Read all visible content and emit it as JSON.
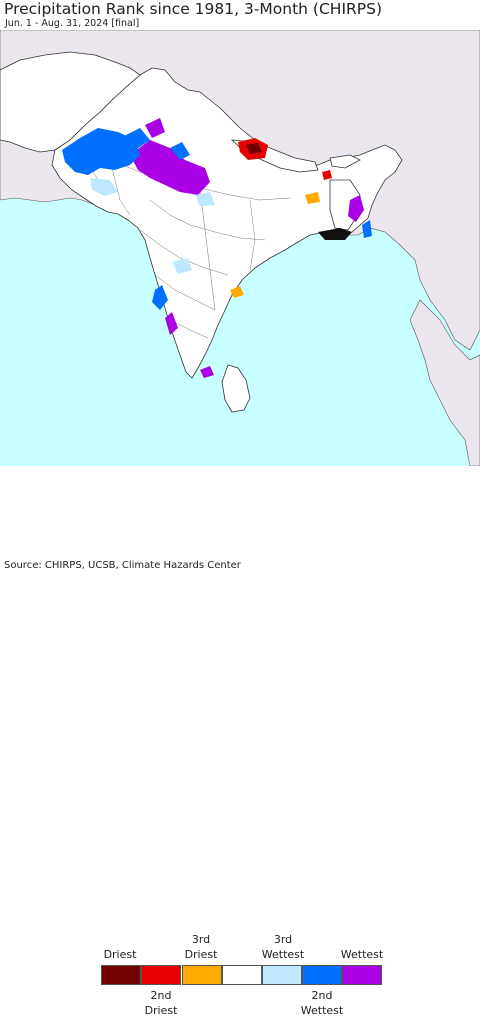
{
  "header": {
    "title": "Precipitation Rank since 1981, 3-Month (CHIRPS)",
    "subtitle": "Jun. 1 - Aug. 31, 2024 [final]"
  },
  "map": {
    "colors": {
      "ocean": "#c8ffff",
      "land_other": "#ece6ee",
      "land_region": "#ffffff",
      "border": "#444444"
    }
  },
  "legend": {
    "items": [
      {
        "label_top": "Driest",
        "label_bottom": "",
        "color": "#730000"
      },
      {
        "label_top": "",
        "label_bottom": "2nd\nDriest",
        "color": "#e60000"
      },
      {
        "label_top": "3rd\nDriest",
        "label_bottom": "",
        "color": "#ffaa00"
      },
      {
        "label_top": "",
        "label_bottom": "",
        "color": "#ffffff"
      },
      {
        "label_top": "3rd\nWettest",
        "label_bottom": "",
        "color": "#bee8ff"
      },
      {
        "label_top": "",
        "label_bottom": "2nd\nWettest",
        "color": "#0070ff"
      },
      {
        "label_top": "Wettest",
        "label_bottom": "",
        "color": "#a900e6"
      }
    ]
  },
  "footer": {
    "source": "Source: CHIRPS, UCSB, Climate Hazards Center"
  }
}
